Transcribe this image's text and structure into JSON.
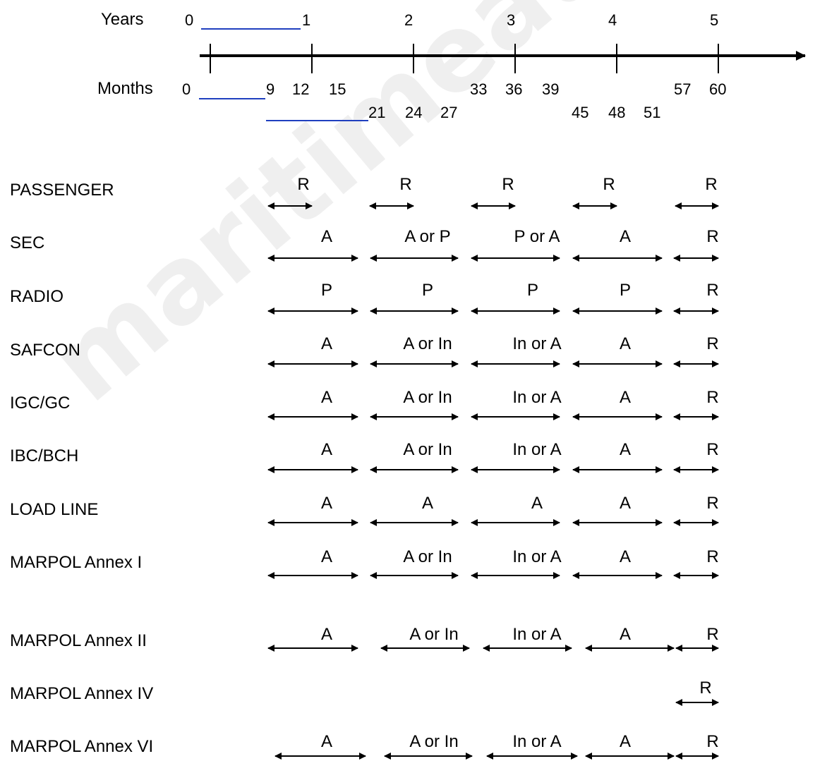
{
  "axis": {
    "years_label": "Years",
    "months_label": "Months",
    "year_ticks": [
      "0",
      "1",
      "2",
      "3",
      "4",
      "5"
    ],
    "month_row1": [
      "0",
      "9",
      "12",
      "15",
      "33",
      "36",
      "39",
      "57",
      "60"
    ],
    "month_row2": [
      "21",
      "24",
      "27",
      "45",
      "48",
      "51"
    ]
  },
  "rows": [
    {
      "label": "PASSENGER",
      "spans": [
        "R",
        "R",
        "R",
        "R",
        "R"
      ]
    },
    {
      "label": "SEC",
      "spans": [
        "A",
        "A or P",
        "P or A",
        "A",
        "R"
      ]
    },
    {
      "label": "RADIO",
      "spans": [
        "P",
        "P",
        "P",
        "P",
        "R"
      ]
    },
    {
      "label": "SAFCON",
      "spans": [
        "A",
        "A or In",
        "In or A",
        "A",
        "R"
      ]
    },
    {
      "label": "IGC/GC",
      "spans": [
        "A",
        "A or In",
        "In or A",
        "A",
        "R"
      ]
    },
    {
      "label": "IBC/BCH",
      "spans": [
        "A",
        "A or In",
        "In or A",
        "A",
        "R"
      ]
    },
    {
      "label": "LOAD LINE",
      "spans": [
        "A",
        "A",
        "A",
        "A",
        "R"
      ]
    },
    {
      "label": "MARPOL Annex I",
      "spans": [
        "A",
        "A or In",
        "In or A",
        "A",
        "R"
      ]
    },
    {
      "label": "MARPOL Annex II",
      "spans": [
        "A",
        "A or In",
        "In or A",
        "A",
        "R"
      ]
    },
    {
      "label": "MARPOL Annex IV",
      "spans": [
        "R"
      ]
    },
    {
      "label": "MARPOL Annex VI",
      "spans": [
        "A",
        "A or In",
        "In or A",
        "A",
        "R"
      ]
    }
  ],
  "watermark": "maritimeauditors.com",
  "colors": {
    "underline": "#1f3fbf",
    "ink": "#000000"
  }
}
